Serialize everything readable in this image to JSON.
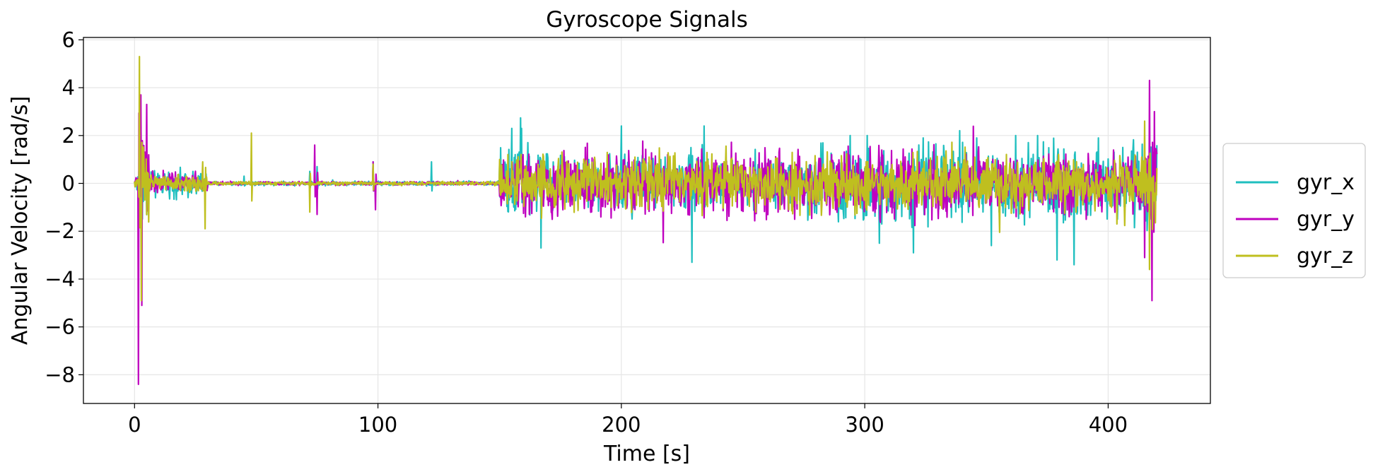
{
  "chart_data": {
    "type": "line",
    "title": "Gyroscope Signals",
    "xlabel": "Time [s]",
    "ylabel": "Angular Velocity [rad/s]",
    "xlim": [
      -21,
      442
    ],
    "ylim": [
      -9.2,
      6.1
    ],
    "x_ticks": [
      0,
      100,
      200,
      300,
      400
    ],
    "x_tick_labels": [
      "0",
      "100",
      "200",
      "300",
      "400"
    ],
    "y_ticks": [
      6,
      4,
      2,
      0,
      -2,
      -4,
      -6,
      -8
    ],
    "y_tick_labels": [
      "6",
      "4",
      "2",
      "0",
      "−2",
      "−4",
      "−6",
      "−8"
    ],
    "grid": true,
    "legend_position": "right",
    "x_range": [
      0,
      420
    ],
    "series": [
      {
        "name": "gyr_x",
        "color": "#1fbfbf",
        "segments": [
          {
            "from": 0,
            "to": 1.5,
            "amp": 0.3
          },
          {
            "from": 1.5,
            "to": 6,
            "amp": 1.2
          },
          {
            "from": 6,
            "to": 30,
            "amp": 0.35
          },
          {
            "from": 30,
            "to": 150,
            "amp": 0.06
          },
          {
            "from": 150,
            "to": 170,
            "amp": 1.1
          },
          {
            "from": 170,
            "to": 198,
            "amp": 0.75
          },
          {
            "from": 198,
            "to": 236,
            "amp": 0.9
          },
          {
            "from": 236,
            "to": 275,
            "amp": 0.6
          },
          {
            "from": 275,
            "to": 415,
            "amp": 1.0
          },
          {
            "from": 415,
            "to": 421,
            "amp": 1.2
          }
        ],
        "bursts": [
          {
            "t": 24,
            "amp": 0.5
          },
          {
            "t": 45,
            "amp": 0.3
          },
          {
            "t": 72,
            "amp": 0.5
          },
          {
            "t": 75,
            "amp": 0.7
          },
          {
            "t": 98,
            "amp": 0.9
          },
          {
            "t": 122,
            "amp": 0.9
          },
          {
            "t": 155,
            "amp": 2.3
          },
          {
            "t": 159,
            "amp": 2.3
          },
          {
            "t": 167,
            "amp": -2.7
          },
          {
            "t": 200,
            "amp": 2.4
          },
          {
            "t": 229,
            "amp": -3.3
          },
          {
            "t": 234,
            "amp": 2.4
          },
          {
            "t": 294,
            "amp": 2.0
          },
          {
            "t": 301,
            "amp": 2.0
          },
          {
            "t": 306,
            "amp": -2.5
          },
          {
            "t": 320,
            "amp": -2.9
          },
          {
            "t": 324,
            "amp": 1.9
          },
          {
            "t": 339,
            "amp": 2.2
          },
          {
            "t": 346,
            "amp": 1.9
          },
          {
            "t": 352,
            "amp": -2.6
          },
          {
            "t": 362,
            "amp": 2.0
          },
          {
            "t": 371,
            "amp": 2.0
          },
          {
            "t": 379,
            "amp": -3.2
          },
          {
            "t": 386,
            "amp": -3.4
          },
          {
            "t": 396,
            "amp": 1.9
          },
          {
            "t": 406,
            "amp": 1.5
          },
          {
            "t": 412,
            "amp": 1.3
          },
          {
            "t": 420,
            "amp": 1.6
          }
        ]
      },
      {
        "name": "gyr_y",
        "color": "#bf00bf",
        "segments": [
          {
            "from": 0,
            "to": 1.5,
            "amp": 0.3
          },
          {
            "from": 1.5,
            "to": 6,
            "amp": 1.3
          },
          {
            "from": 6,
            "to": 30,
            "amp": 0.3
          },
          {
            "from": 30,
            "to": 150,
            "amp": 0.05
          },
          {
            "from": 150,
            "to": 415,
            "amp": 0.9
          },
          {
            "from": 415,
            "to": 421,
            "amp": 1.3
          }
        ],
        "bursts": [
          {
            "t": 1.5,
            "amp": -8.4
          },
          {
            "t": 2.5,
            "amp": 3.7
          },
          {
            "t": 5,
            "amp": 3.3
          },
          {
            "t": 3,
            "amp": -5.1
          },
          {
            "t": 74,
            "amp": 1.6
          },
          {
            "t": 75,
            "amp": -1.3
          },
          {
            "t": 98,
            "amp": 0.9
          },
          {
            "t": 99,
            "amp": -1.1
          },
          {
            "t": 415,
            "amp": -3.1
          },
          {
            "t": 417,
            "amp": 4.3
          },
          {
            "t": 418,
            "amp": -4.9
          },
          {
            "t": 419,
            "amp": 3.0
          }
        ]
      },
      {
        "name": "gyr_z",
        "color": "#bfbf1f",
        "segments": [
          {
            "from": 0,
            "to": 1.5,
            "amp": 0.2
          },
          {
            "from": 1.5,
            "to": 6,
            "amp": 1.0
          },
          {
            "from": 6,
            "to": 30,
            "amp": 0.25
          },
          {
            "from": 30,
            "to": 150,
            "amp": 0.05
          },
          {
            "from": 150,
            "to": 415,
            "amp": 0.75
          },
          {
            "from": 415,
            "to": 421,
            "amp": 1.0
          }
        ],
        "bursts": [
          {
            "t": 2,
            "amp": 5.3
          },
          {
            "t": 2.8,
            "amp": -4.9
          },
          {
            "t": 5,
            "amp": -1.3
          },
          {
            "t": 28,
            "amp": 0.9
          },
          {
            "t": 29,
            "amp": -1.9
          },
          {
            "t": 48,
            "amp": 2.1
          },
          {
            "t": 72,
            "amp": -1.2
          },
          {
            "t": 98,
            "amp": 0.8
          },
          {
            "t": 150,
            "amp": 1.0
          },
          {
            "t": 415,
            "amp": 2.6
          },
          {
            "t": 417,
            "amp": -3.6
          }
        ]
      }
    ]
  }
}
